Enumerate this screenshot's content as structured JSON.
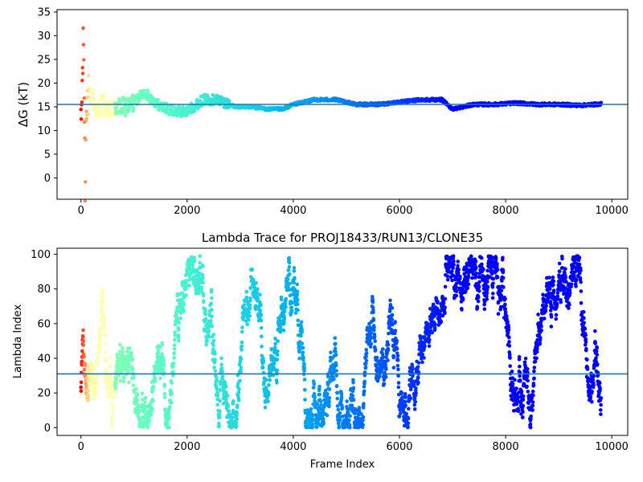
{
  "chart_data": [
    {
      "type": "scatter",
      "title": "",
      "xlabel": "",
      "ylabel": "ΔG (kT)",
      "xlim": [
        -450,
        10300
      ],
      "ylim": [
        -4.5,
        35.5
      ],
      "xticks": [
        0,
        2000,
        4000,
        6000,
        8000,
        10000
      ],
      "yticks": [
        0,
        5,
        10,
        15,
        20,
        25,
        30,
        35
      ],
      "hline": 15.5,
      "hline_color": "#1f77b4",
      "grid": false,
      "colormap": "rainbow (reversed over frame index: red at 0, violet at end)",
      "n_frames": 9800,
      "series": [
        {
          "x_range": [
            0,
            9800
          ],
          "description_points": [
            [
              0,
              10
            ],
            [
              50,
              30
            ],
            [
              80,
              -3.5
            ],
            [
              100,
              17
            ],
            [
              200,
              17
            ],
            [
              300,
              14
            ],
            [
              400,
              16
            ],
            [
              500,
              14
            ],
            [
              700,
              15
            ],
            [
              900,
              15
            ],
            [
              1200,
              18
            ],
            [
              1500,
              15
            ],
            [
              1800,
              14
            ],
            [
              2000,
              14
            ],
            [
              2300,
              16.5
            ],
            [
              2600,
              16.5
            ],
            [
              2900,
              15
            ],
            [
              3200,
              15
            ],
            [
              3500,
              14.5
            ],
            [
              3800,
              14.5
            ],
            [
              4000,
              15.5
            ],
            [
              4400,
              16.5
            ],
            [
              4800,
              16.5
            ],
            [
              5200,
              15.5
            ],
            [
              5600,
              15.5
            ],
            [
              6000,
              16
            ],
            [
              6400,
              16.5
            ],
            [
              6800,
              16.5
            ],
            [
              7000,
              14.5
            ],
            [
              7400,
              15.5
            ],
            [
              7800,
              15.5
            ],
            [
              8200,
              15.8
            ],
            [
              8600,
              15.5
            ],
            [
              9000,
              15.5
            ],
            [
              9400,
              15.3
            ],
            [
              9800,
              15.6
            ]
          ]
        }
      ]
    },
    {
      "type": "scatter",
      "title": "Lambda Trace for PROJ18433/RUN13/CLONE35",
      "xlabel": "Frame Index",
      "ylabel": "Lambda Index",
      "xlim": [
        -450,
        10300
      ],
      "ylim": [
        -4.5,
        103.5
      ],
      "xticks": [
        0,
        2000,
        4000,
        6000,
        8000,
        10000
      ],
      "yticks": [
        0,
        20,
        40,
        60,
        80,
        100
      ],
      "hline": 31,
      "hline_color": "#1f77b4",
      "grid": false,
      "colormap": "rainbow (reversed over frame index: red at 0, violet at end)",
      "n_frames": 9800,
      "y_range": [
        0,
        99
      ]
    }
  ]
}
